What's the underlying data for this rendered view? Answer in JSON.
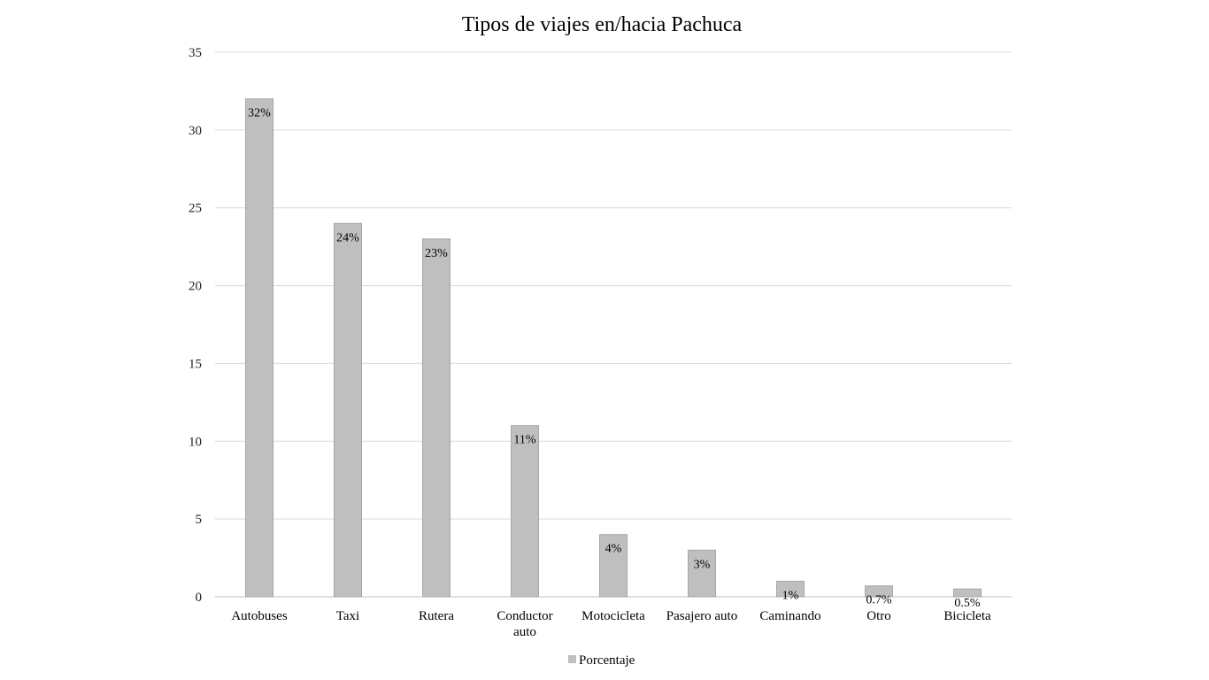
{
  "chart_data": {
    "type": "bar",
    "title": "Tipos de viajes en/hacia Pachuca",
    "xlabel": "",
    "ylabel": "",
    "ylim": [
      0,
      35
    ],
    "yticks": [
      0,
      5,
      10,
      15,
      20,
      25,
      30,
      35
    ],
    "grid": true,
    "legend_position": "bottom",
    "categories": [
      [
        "Autobuses"
      ],
      [
        "Taxi"
      ],
      [
        "Rutera"
      ],
      [
        "Conductor",
        "auto"
      ],
      [
        "Motocicleta"
      ],
      [
        "Pasajero auto"
      ],
      [
        "Caminando"
      ],
      [
        "Otro"
      ],
      [
        "Bicicleta"
      ]
    ],
    "series": [
      {
        "name": "Porcentaje",
        "color": "#bfbfbf",
        "values": [
          32,
          24,
          23,
          11,
          4,
          3,
          1,
          0.7,
          0.5
        ],
        "labels": [
          "32%",
          "24%",
          "23%",
          "11%",
          "4%",
          "3%",
          "1%",
          "0.7%",
          "0.5%"
        ]
      }
    ]
  }
}
